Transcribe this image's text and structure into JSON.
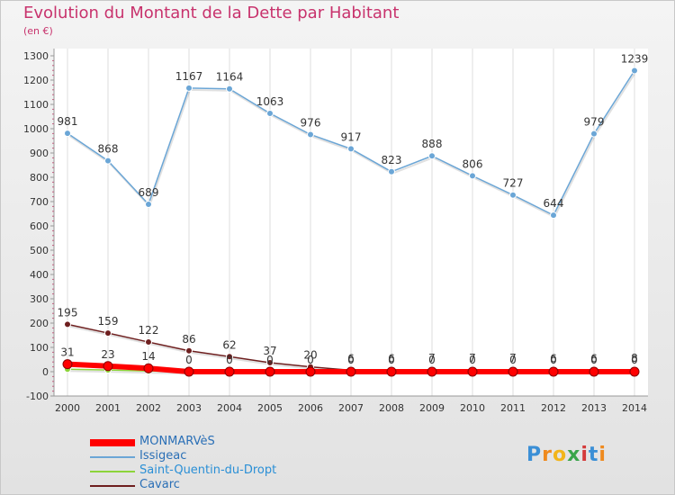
{
  "title": "Evolution du Montant de la Dette par Habitant",
  "subtitle": "(en €)",
  "logo": "Proxiti",
  "chart_data": {
    "type": "line",
    "x": [
      2000,
      2001,
      2002,
      2003,
      2004,
      2005,
      2006,
      2007,
      2008,
      2009,
      2010,
      2011,
      2012,
      2013,
      2014
    ],
    "ylim": [
      -100,
      1300
    ],
    "yticks": [
      -100,
      0,
      100,
      200,
      300,
      400,
      500,
      600,
      700,
      800,
      900,
      1000,
      1100,
      1200,
      1300
    ],
    "grid": "vertical",
    "legend_position": "bottom-left",
    "series": [
      {
        "name": "MONMARVèS",
        "color": "#ff0000",
        "values": [
          31,
          23,
          14,
          0,
          0,
          0,
          0,
          0,
          0,
          0,
          0,
          0,
          0,
          0,
          0
        ],
        "labels": [
          "31",
          "23",
          "14",
          "0",
          "0",
          "0",
          "0",
          "0",
          "0",
          "0",
          "0",
          "0",
          "0",
          "0",
          "0"
        ]
      },
      {
        "name": "Issigeac",
        "color": "#6ba6d6",
        "values": [
          981,
          868,
          689,
          1167,
          1164,
          1063,
          976,
          917,
          823,
          888,
          806,
          727,
          644,
          979,
          1239
        ],
        "labels": [
          "981",
          "868",
          "689",
          "1167",
          "1164",
          "1063",
          "976",
          "917",
          "823",
          "888",
          "806",
          "727",
          "644",
          "979",
          "1239"
        ]
      },
      {
        "name": "Saint-Quentin-du-Dropt",
        "color": "#8cd43a",
        "values": [
          10,
          7,
          3,
          0,
          0,
          0,
          0,
          0,
          0,
          0,
          0,
          0,
          0,
          0,
          0
        ],
        "labels": []
      },
      {
        "name": "Cavarc",
        "color": "#6e1f1f",
        "values": [
          195,
          159,
          122,
          86,
          62,
          37,
          20,
          6,
          6,
          7,
          7,
          7,
          6,
          6,
          8
        ],
        "labels": [
          "195",
          "159",
          "122",
          "86",
          "62",
          "37",
          "20",
          "6",
          "6",
          "7",
          "7",
          "7",
          "6",
          "6",
          "8"
        ]
      }
    ]
  }
}
